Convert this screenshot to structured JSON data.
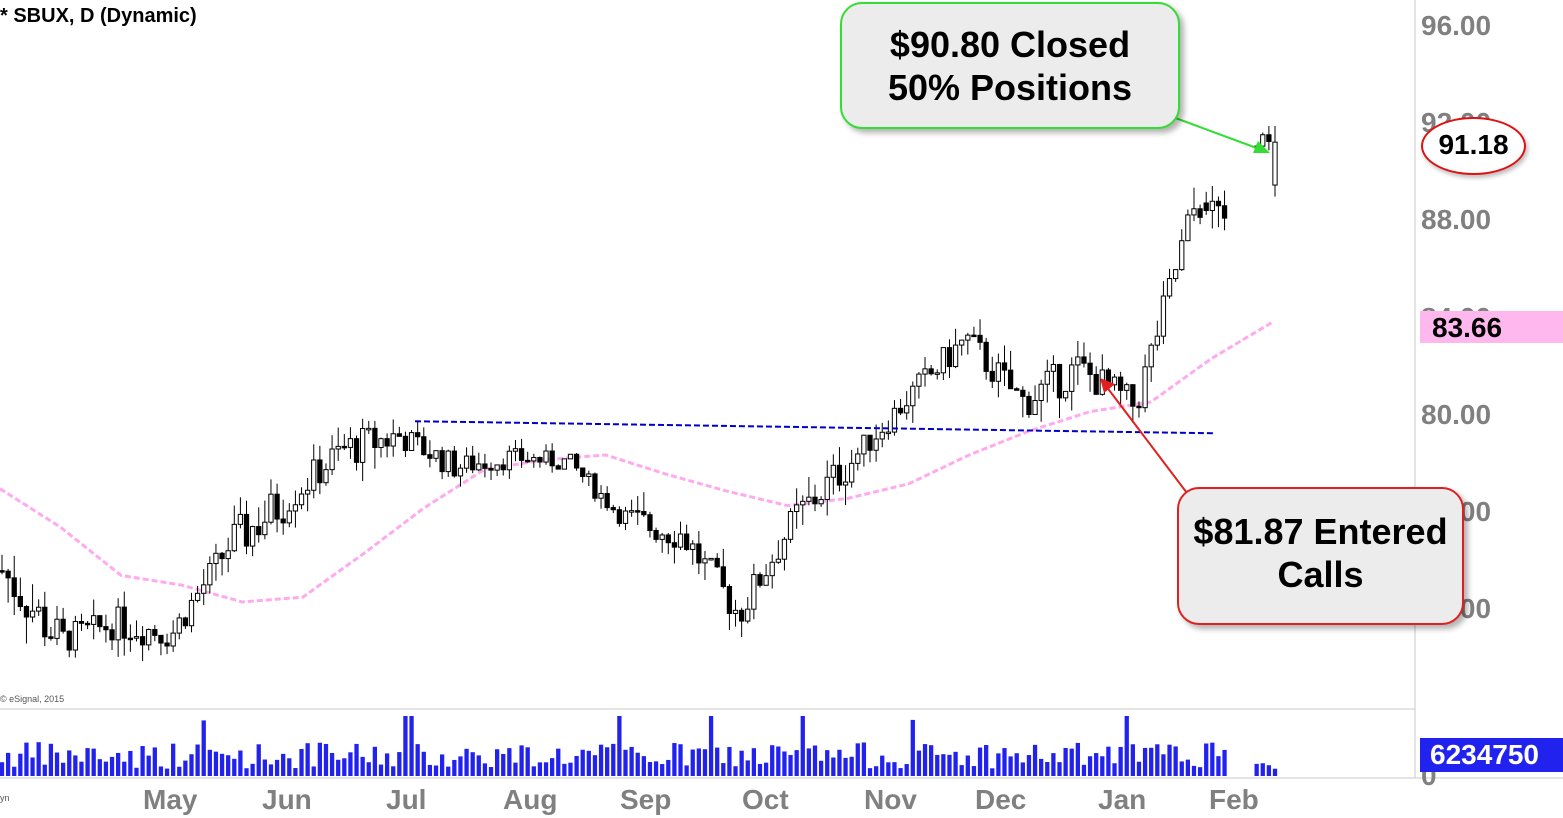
{
  "chart_data": {
    "type": "candlestick",
    "title": "* SBUX, D (Dynamic)",
    "credit": "© eSignal, 2015",
    "credit_short": "yn",
    "y_ticks": [
      "96.00",
      "92.00",
      "88.00",
      "84.00",
      "80.00",
      "76.00",
      "72.00"
    ],
    "ylim": [
      67.7,
      96.0
    ],
    "x_ticks": [
      "May",
      "Jun",
      "Jul",
      "Aug",
      "Sep",
      "Oct",
      "Nov",
      "Dec",
      "Jan",
      "Feb"
    ],
    "volume_zero_label": "0",
    "last_price": "91.18",
    "ma_value": "83.66",
    "last_volume": "6234750",
    "annotations": [
      {
        "name": "closed",
        "lines": [
          "$90.80 Closed",
          "50% Positions"
        ],
        "color": "#33dd33"
      },
      {
        "name": "entered",
        "lines": [
          "$81.87 Entered",
          "Calls"
        ],
        "color": "#e02020"
      }
    ],
    "resistance_line": {
      "start": 79.6,
      "end": 79.1,
      "color": "#0000cc"
    },
    "ma_color": "#ffaaee",
    "up_color": "#ffffff",
    "down_color": "#000000",
    "volume_color": "#2222ee",
    "segments": [
      {
        "trend": 73.4,
        "amp": 1.3
      },
      {
        "trend": 70.5,
        "amp": 0.8
      },
      {
        "trend": 71.2,
        "amp": 0.9
      },
      {
        "trend": 70.8,
        "amp": 0.8
      },
      {
        "trend": 74.4,
        "amp": 1.2
      },
      {
        "trend": 76.3,
        "amp": 0.9
      },
      {
        "trend": 78.4,
        "amp": 1.0
      },
      {
        "trend": 79.0,
        "amp": 0.7
      },
      {
        "trend": 77.7,
        "amp": 0.6
      },
      {
        "trend": 78.1,
        "amp": 0.5
      },
      {
        "trend": 77.9,
        "amp": 0.5
      },
      {
        "trend": 75.5,
        "amp": 0.9
      },
      {
        "trend": 74.9,
        "amp": 0.9
      },
      {
        "trend": 71.6,
        "amp": 0.9
      },
      {
        "trend": 75.6,
        "amp": 1.0
      },
      {
        "trend": 78.0,
        "amp": 0.7
      },
      {
        "trend": 80.6,
        "amp": 0.8
      },
      {
        "trend": 83.0,
        "amp": 0.9
      },
      {
        "trend": 80.4,
        "amp": 1.0
      },
      {
        "trend": 81.8,
        "amp": 0.9
      },
      {
        "trend": 80.2,
        "amp": 0.9
      },
      {
        "trend": 88.3,
        "amp": 1.0
      },
      {
        "trend": 91.0,
        "amp": 0.8
      }
    ],
    "ma_points": [
      76.8,
      75.2,
      73.2,
      72.8,
      72.1,
      72.3,
      74.1,
      76.0,
      77.6,
      78.0,
      78.2,
      77.4,
      76.7,
      76.1,
      76.4,
      77.0,
      78.2,
      79.2,
      80.0,
      80.4,
      82.2,
      83.7
    ]
  }
}
